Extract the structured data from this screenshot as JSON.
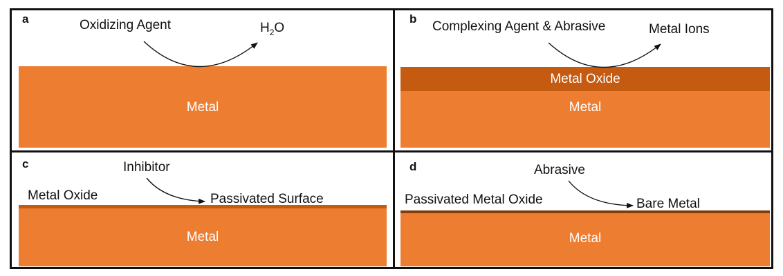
{
  "colors": {
    "metal": "#ED7D31",
    "oxide": "#C55A11",
    "dark_oxide": "#843C0C",
    "line": "#111111"
  },
  "panels": {
    "a": {
      "letter": "a",
      "reactant": "Oxidizing Agent",
      "product_main": "H",
      "product_sub": "2",
      "product_tail": "O",
      "layer": "Metal"
    },
    "b": {
      "letter": "b",
      "reactant": "Complexing Agent & Abrasive",
      "product": "Metal Ions",
      "oxide_layer": "Metal Oxide",
      "layer": "Metal"
    },
    "c": {
      "letter": "c",
      "reactant": "Inhibitor",
      "surface_label": "Metal Oxide",
      "product": "Passivated Surface",
      "layer": "Metal"
    },
    "d": {
      "letter": "d",
      "reactant": "Abrasive",
      "surface_label": "Passivated Metal Oxide",
      "product": "Bare Metal",
      "layer": "Metal"
    }
  }
}
